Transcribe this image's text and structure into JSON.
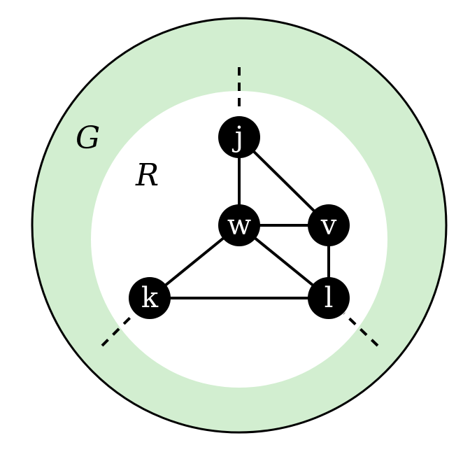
{
  "colors": {
    "outer_region": "#d2eed0",
    "inner_region": "#ffffff",
    "node_fill": "#000000",
    "node_text": "#ffffff",
    "stroke": "#000000"
  },
  "regions": {
    "outer_label": "G",
    "inner_label": "R"
  },
  "nodes": [
    {
      "id": "j",
      "label": "j"
    },
    {
      "id": "w",
      "label": "w"
    },
    {
      "id": "v",
      "label": "v"
    },
    {
      "id": "k",
      "label": "k"
    },
    {
      "id": "l",
      "label": "l"
    }
  ],
  "edges": [
    [
      "j",
      "w"
    ],
    [
      "j",
      "v"
    ],
    [
      "w",
      "v"
    ],
    [
      "w",
      "k"
    ],
    [
      "w",
      "l"
    ],
    [
      "k",
      "l"
    ],
    [
      "v",
      "l"
    ]
  ],
  "dangling_edges": [
    "j",
    "k",
    "l"
  ]
}
